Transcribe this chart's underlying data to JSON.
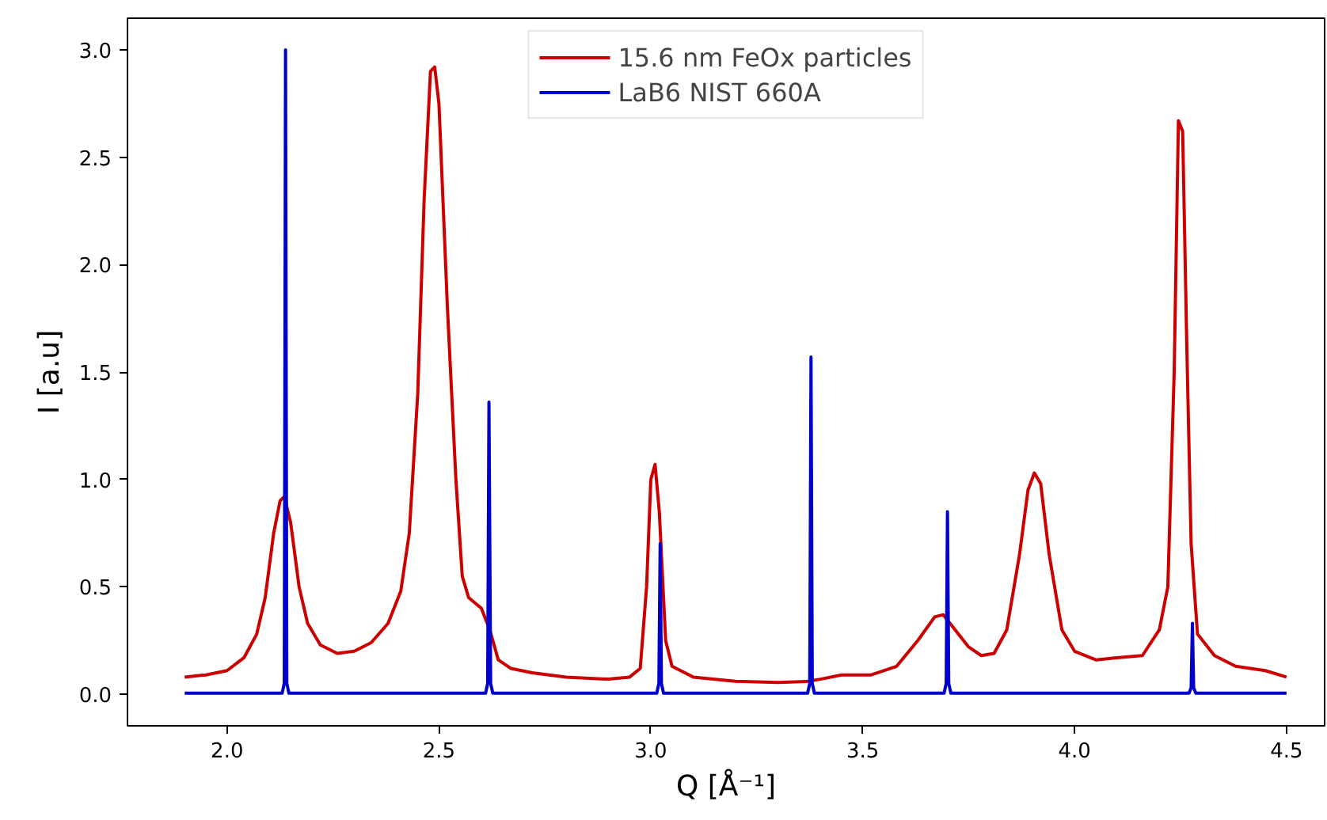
{
  "chart_data": {
    "type": "line",
    "xlabel": "Q [Å⁻¹]",
    "ylabel": "I [a.u]",
    "xlim": [
      1.765,
      4.59
    ],
    "ylim": [
      -0.147,
      3.147
    ],
    "xticks": [
      {
        "value": 2,
        "label": "2.0"
      },
      {
        "value": 2.5,
        "label": "2.5"
      },
      {
        "value": 3,
        "label": "3.0"
      },
      {
        "value": 3.5,
        "label": "3.5"
      },
      {
        "value": 4,
        "label": "4.0"
      },
      {
        "value": 4.5,
        "label": "4.5"
      }
    ],
    "yticks": [
      {
        "value": 0,
        "label": "0.0"
      },
      {
        "value": 0.5,
        "label": "0.5"
      },
      {
        "value": 1,
        "label": "1.0"
      },
      {
        "value": 1.5,
        "label": "1.5"
      },
      {
        "value": 2,
        "label": "2.0"
      },
      {
        "value": 2.5,
        "label": "2.5"
      },
      {
        "value": 3,
        "label": "3.0"
      }
    ],
    "grid": false,
    "legend": "top",
    "line_style": "solid",
    "marker": "none",
    "series": [
      {
        "name": "15.6 nm FeOx particles",
        "color": "#cc0000",
        "x": [
          1.9,
          1.95,
          2.0,
          2.04,
          2.07,
          2.09,
          2.11,
          2.125,
          2.135,
          2.15,
          2.17,
          2.19,
          2.22,
          2.26,
          2.3,
          2.34,
          2.38,
          2.41,
          2.43,
          2.45,
          2.465,
          2.48,
          2.49,
          2.5,
          2.52,
          2.54,
          2.555,
          2.57,
          2.6,
          2.62,
          2.64,
          2.67,
          2.72,
          2.8,
          2.9,
          2.95,
          2.975,
          2.99,
          3.0,
          3.01,
          3.02,
          3.035,
          3.05,
          3.1,
          3.2,
          3.3,
          3.37,
          3.4,
          3.45,
          3.52,
          3.58,
          3.63,
          3.67,
          3.69,
          3.71,
          3.75,
          3.78,
          3.81,
          3.84,
          3.87,
          3.89,
          3.905,
          3.92,
          3.94,
          3.97,
          4.0,
          4.05,
          4.1,
          4.16,
          4.2,
          4.22,
          4.235,
          4.245,
          4.255,
          4.265,
          4.275,
          4.29,
          4.33,
          4.38,
          4.45,
          4.5
        ],
        "values": [
          0.08,
          0.09,
          0.11,
          0.17,
          0.28,
          0.45,
          0.75,
          0.9,
          0.92,
          0.8,
          0.5,
          0.33,
          0.23,
          0.19,
          0.2,
          0.24,
          0.33,
          0.48,
          0.75,
          1.4,
          2.3,
          2.9,
          2.92,
          2.75,
          1.8,
          1.0,
          0.55,
          0.45,
          0.4,
          0.3,
          0.16,
          0.12,
          0.1,
          0.08,
          0.07,
          0.08,
          0.12,
          0.5,
          1.0,
          1.07,
          0.85,
          0.25,
          0.13,
          0.08,
          0.06,
          0.055,
          0.06,
          0.07,
          0.09,
          0.09,
          0.13,
          0.25,
          0.36,
          0.37,
          0.32,
          0.22,
          0.18,
          0.19,
          0.3,
          0.65,
          0.95,
          1.03,
          0.98,
          0.65,
          0.3,
          0.2,
          0.16,
          0.17,
          0.18,
          0.3,
          0.5,
          1.5,
          2.67,
          2.62,
          1.6,
          0.7,
          0.28,
          0.18,
          0.13,
          0.11,
          0.08
        ]
      },
      {
        "name": "LaB6 NIST 660A",
        "color": "#0000cc",
        "x": [
          1.9,
          2.13,
          2.135,
          2.138,
          2.141,
          2.146,
          2.61,
          2.615,
          2.618,
          2.622,
          2.627,
          3.014,
          3.019,
          3.022,
          3.025,
          3.03,
          3.37,
          3.375,
          3.378,
          3.381,
          3.386,
          3.692,
          3.697,
          3.7,
          3.703,
          3.708,
          4.27,
          4.275,
          4.278,
          4.281,
          4.286,
          4.5
        ],
        "values": [
          0.005,
          0.005,
          0.05,
          3.0,
          0.05,
          0.005,
          0.005,
          0.05,
          1.36,
          0.05,
          0.005,
          0.005,
          0.05,
          0.7,
          0.05,
          0.005,
          0.005,
          0.05,
          1.57,
          0.05,
          0.005,
          0.005,
          0.05,
          0.85,
          0.05,
          0.005,
          0.005,
          0.03,
          0.33,
          0.03,
          0.005,
          0.005
        ]
      }
    ]
  }
}
